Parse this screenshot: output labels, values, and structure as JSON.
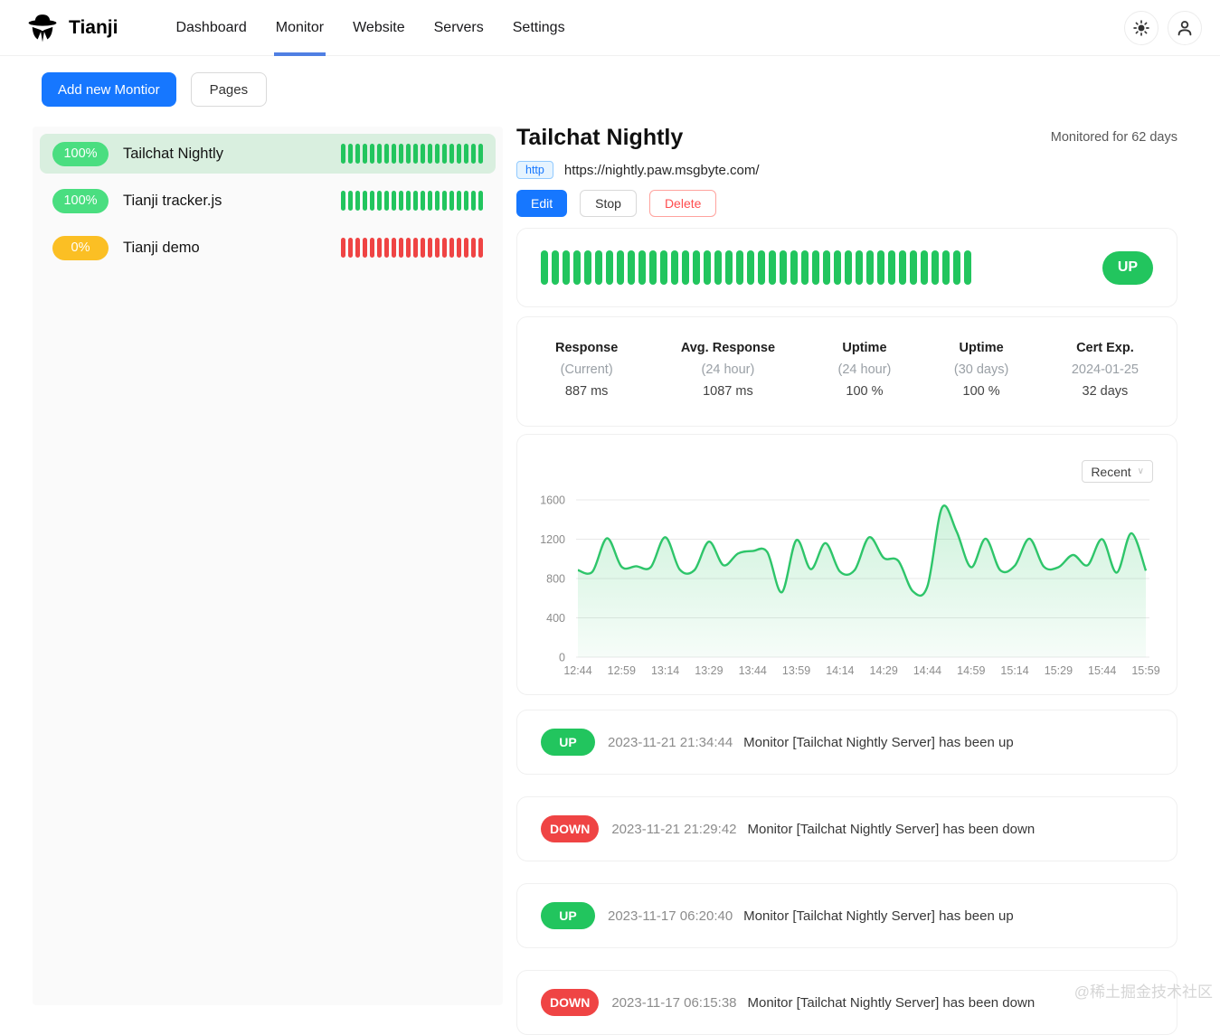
{
  "navbar": {
    "brand": "Tianji",
    "items": [
      {
        "label": "Dashboard",
        "active": false
      },
      {
        "label": "Monitor",
        "active": true
      },
      {
        "label": "Website",
        "active": false
      },
      {
        "label": "Servers",
        "active": false
      },
      {
        "label": "Settings",
        "active": false
      }
    ],
    "icons": [
      "sun-icon",
      "user-icon"
    ]
  },
  "toolbar": {
    "add_button": "Add new Montior",
    "pages_button": "Pages"
  },
  "monitor_list": [
    {
      "name": "Tailchat Nightly",
      "uptime_badge": "100%",
      "status": "up",
      "selected": true,
      "bar_count": 20
    },
    {
      "name": "Tianji tracker.js",
      "uptime_badge": "100%",
      "status": "up",
      "selected": false,
      "bar_count": 20
    },
    {
      "name": "Tianji demo",
      "uptime_badge": "0%",
      "status": "down",
      "selected": false,
      "bar_count": 20
    }
  ],
  "detail": {
    "title": "Tailchat Nightly",
    "monitored_for": "Monitored for 62 days",
    "protocol_tag": "http",
    "url": "https://nightly.paw.msgbyte.com/",
    "buttons": {
      "edit": "Edit",
      "stop": "Stop",
      "delete": "Delete"
    },
    "status_badge": "UP",
    "health_bar_count": 40,
    "stats": [
      {
        "label": "Response",
        "sub": "(Current)",
        "value": "887 ms"
      },
      {
        "label": "Avg. Response",
        "sub": "(24 hour)",
        "value": "1087 ms"
      },
      {
        "label": "Uptime",
        "sub": "(24 hour)",
        "value": "100 %"
      },
      {
        "label": "Uptime",
        "sub": "(30 days)",
        "value": "100 %"
      },
      {
        "label": "Cert Exp.",
        "sub": "2024-01-25",
        "value": "32 days"
      }
    ],
    "range_select": "Recent"
  },
  "chart_data": {
    "type": "area",
    "title": "",
    "x_ticks": [
      "12:44",
      "12:59",
      "13:14",
      "13:29",
      "13:44",
      "13:59",
      "14:14",
      "14:29",
      "14:44",
      "14:59",
      "15:14",
      "15:29",
      "15:44",
      "15:59"
    ],
    "values": [
      885,
      870,
      1210,
      920,
      925,
      915,
      1220,
      890,
      885,
      1175,
      935,
      1055,
      1080,
      1070,
      660,
      1190,
      895,
      1160,
      870,
      885,
      1220,
      1010,
      980,
      670,
      720,
      1520,
      1280,
      915,
      1205,
      885,
      930,
      1205,
      920,
      915,
      1040,
      935,
      1200,
      860,
      1260,
      880
    ],
    "ylim": [
      0,
      1600
    ],
    "y_ticks": [
      0,
      400,
      800,
      1200,
      1600
    ],
    "grid": "horizontal",
    "legend": "none"
  },
  "events": [
    {
      "status": "UP",
      "time": "2023-11-21 21:34:44",
      "message": "Monitor [Tailchat Nightly Server] has been up"
    },
    {
      "status": "DOWN",
      "time": "2023-11-21 21:29:42",
      "message": "Monitor [Tailchat Nightly Server] has been down"
    },
    {
      "status": "UP",
      "time": "2023-11-17 06:20:40",
      "message": "Monitor [Tailchat Nightly Server] has been up"
    },
    {
      "status": "DOWN",
      "time": "2023-11-17 06:15:38",
      "message": "Monitor [Tailchat Nightly Server] has been down"
    }
  ],
  "watermark": "@稀土掘金技术社区",
  "colors": {
    "green": "#22c55e",
    "green_badge": "#4ade80",
    "green_selected_bg": "#d9efdf",
    "amber": "#fbbf24",
    "red": "#ef4444",
    "blue": "#1677ff",
    "underline_blue": "#4f7fe3",
    "chart_line": "#2ec56a"
  }
}
